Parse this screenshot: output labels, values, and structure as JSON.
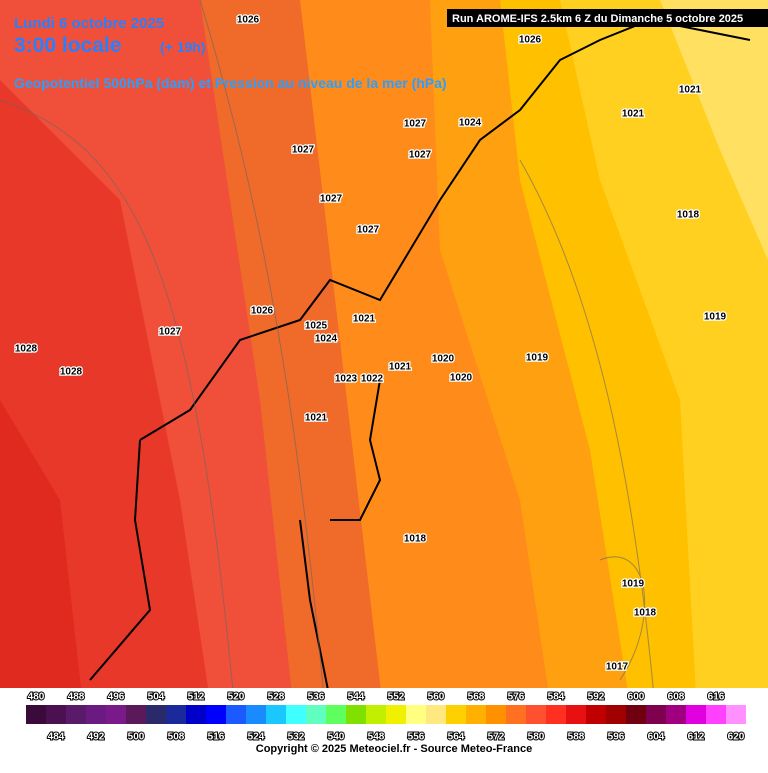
{
  "header": {
    "date": "Lundi 6 octobre 2025",
    "time": "3:00 locale",
    "offset": "(+ 19h)",
    "subtitle": "Geopotentiel 500hPa (dam) et Pression au niveau de la mer (hPa)",
    "run": "Run AROME-IFS 2.5km 6 Z du Dimanche 5 octobre 2025"
  },
  "pressure_labels": [
    1026,
    1026,
    1021,
    1021,
    1027,
    1024,
    1027,
    1027,
    1027,
    1018,
    1027,
    1026,
    1025,
    1021,
    1019,
    1027,
    1024,
    1028,
    1020,
    1019,
    1028,
    1021,
    1023,
    1022,
    1020,
    1021,
    1018,
    1019,
    1018,
    1017
  ],
  "legend": {
    "values": [
      480,
      484,
      488,
      492,
      496,
      500,
      504,
      508,
      512,
      516,
      520,
      524,
      528,
      532,
      536,
      540,
      544,
      548,
      552,
      556,
      560,
      564,
      568,
      572,
      576,
      580,
      584,
      588,
      592,
      596,
      600,
      604,
      608,
      612,
      616,
      620
    ],
    "colors": [
      "#3a0a3a",
      "#4b1050",
      "#5a1a6a",
      "#6a1a80",
      "#7a1a8a",
      "#5a1a5a",
      "#2a2a6a",
      "#1a2a9a",
      "#0000c8",
      "#0000ff",
      "#1a5aff",
      "#1a8aff",
      "#1ac8ff",
      "#40ffff",
      "#60ffc0",
      "#60ff60",
      "#80e000",
      "#c0f000",
      "#f0f000",
      "#ffff80",
      "#ffe880",
      "#ffd000",
      "#ffb000",
      "#ff9000",
      "#ff7020",
      "#ff5030",
      "#ff3020",
      "#e81010",
      "#c00000",
      "#a00000",
      "#700010",
      "#800050",
      "#a00080",
      "#e000e0",
      "#ff40ff",
      "#ff90ff"
    ]
  },
  "copyright": "Copyright © 2025 Meteociel.fr - Source Meteo-France"
}
